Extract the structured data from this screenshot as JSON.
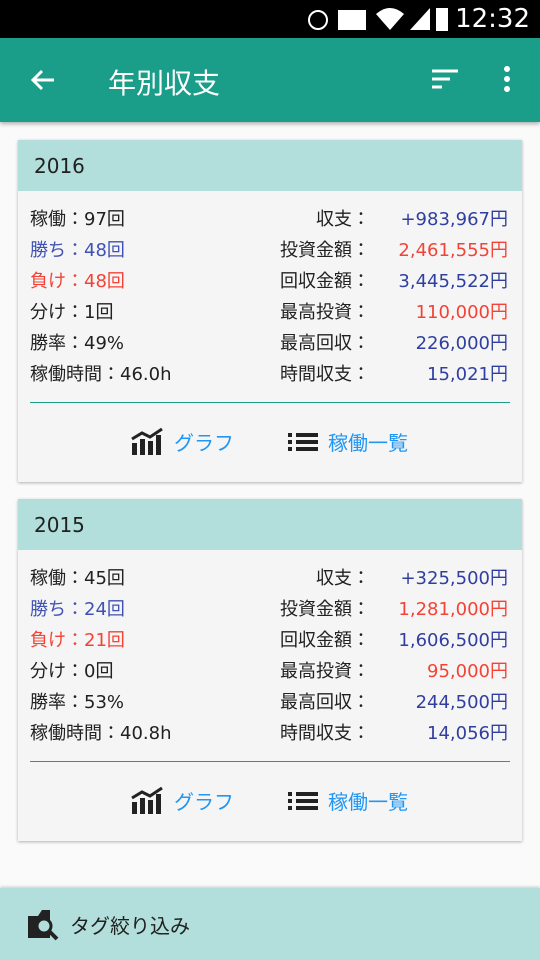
{
  "status_bar": {
    "time": "12:32"
  },
  "app_bar": {
    "title": "年別収支"
  },
  "cards": [
    {
      "year": "2016",
      "left": [
        "稼働：97回",
        "勝ち：48回",
        "負け：48回",
        "分け：1回",
        "勝率：49%",
        "稼働時間：46.0h"
      ],
      "right": [
        {
          "label": "収支：",
          "value": "+983,967円"
        },
        {
          "label": "投資金額：",
          "value": "2,461,555円"
        },
        {
          "label": "回収金額：",
          "value": "3,445,522円"
        },
        {
          "label": "最高投資：",
          "value": "110,000円"
        },
        {
          "label": "最高回収：",
          "value": "226,000円"
        },
        {
          "label": "時間収支：",
          "value": "15,021円"
        }
      ],
      "actions": [
        "グラフ",
        "稼働一覧"
      ]
    },
    {
      "year": "2015",
      "left": [
        "稼働：45回",
        "勝ち：24回",
        "負け：21回",
        "分け：0回",
        "勝率：53%",
        "稼働時間：40.8h"
      ],
      "right": [
        {
          "label": "収支：",
          "value": "+325,500円"
        },
        {
          "label": "投資金額：",
          "value": "1,281,000円"
        },
        {
          "label": "回収金額：",
          "value": "1,606,500円"
        },
        {
          "label": "最高投資：",
          "value": "95,000円"
        },
        {
          "label": "最高回収：",
          "value": "244,500円"
        },
        {
          "label": "時間収支：",
          "value": "14,056円"
        }
      ],
      "actions": [
        "グラフ",
        "稼働一覧"
      ]
    }
  ],
  "bottom_bar": {
    "label": "タグ絞り込み"
  }
}
